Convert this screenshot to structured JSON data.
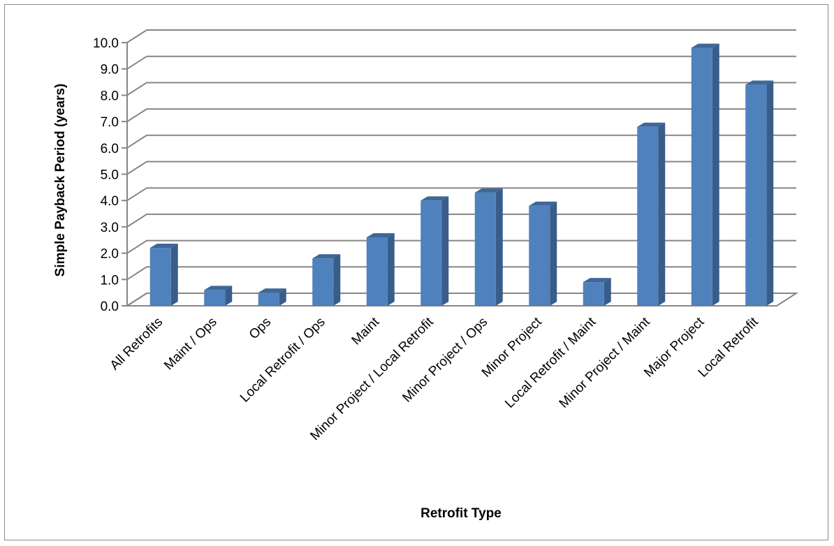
{
  "chart_data": {
    "type": "bar",
    "style": "3d-column",
    "title": "",
    "xlabel": "Retrofit Type",
    "ylabel": "Simple Payback Period (years)",
    "ylim": [
      0,
      10
    ],
    "ytick_step": 1,
    "ytick_labels": [
      "0.0",
      "1.0",
      "2.0",
      "3.0",
      "4.0",
      "5.0",
      "6.0",
      "7.0",
      "8.0",
      "9.0",
      "10.0"
    ],
    "grid": true,
    "legend": "none",
    "categories": [
      "All Retrofits",
      "Maint / Ops",
      "Ops",
      "Local Retrofit / Ops",
      "Maint",
      "Minor Project / Local Retrofit",
      "Minor Project / Ops",
      "Minor Project",
      "Local Retrofit / Maint",
      "Minor Project / Maint",
      "Major Project",
      "Local Retrofit"
    ],
    "values": [
      2.2,
      0.6,
      0.5,
      1.8,
      2.6,
      4.0,
      4.3,
      3.8,
      0.9,
      6.8,
      9.8,
      8.4
    ],
    "colors": {
      "bar_front": "#4f81bd",
      "bar_side": "#385d8a",
      "bar_top": "#3f6797",
      "gridline": "#868686",
      "frame": "#8c8c8c"
    }
  }
}
